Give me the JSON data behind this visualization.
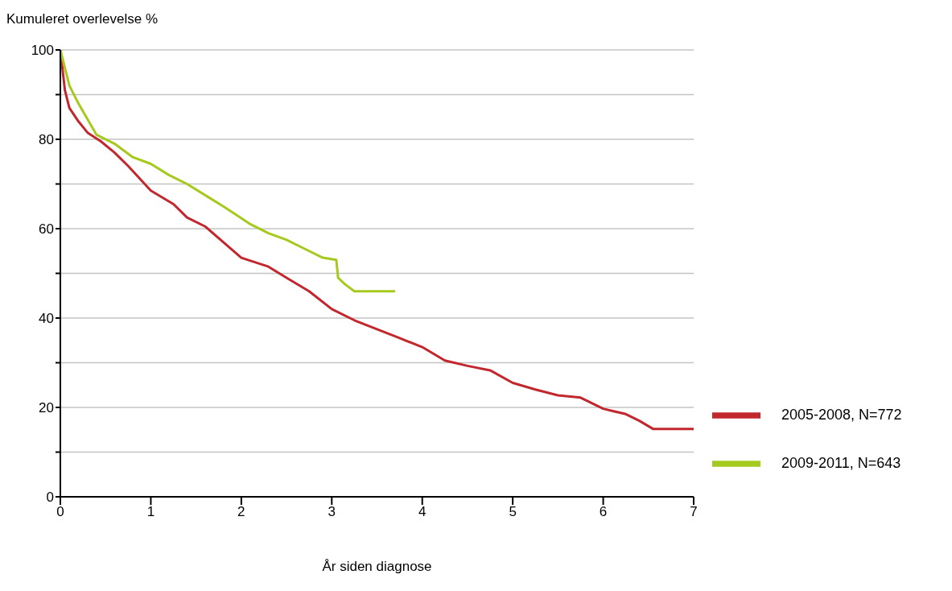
{
  "chart_data": {
    "type": "line",
    "xlabel": "År siden diagnose",
    "ylabel": "Kumuleret overlevelse %",
    "series": [
      {
        "name": "2005-2008, N=772",
        "color": "#c1272d",
        "x": [
          0,
          0.05,
          0.1,
          0.2,
          0.3,
          0.45,
          0.6,
          0.75,
          1.0,
          1.25,
          1.4,
          1.6,
          1.8,
          2.0,
          2.3,
          2.5,
          2.75,
          3.0,
          3.25,
          3.5,
          3.75,
          4.0,
          4.25,
          4.5,
          4.75,
          5.0,
          5.25,
          5.5,
          5.75,
          6.0,
          6.25,
          6.4,
          6.55,
          7.0
        ],
        "values": [
          100,
          91,
          87,
          84,
          81.5,
          79.5,
          77,
          74,
          68.5,
          65.5,
          62.5,
          60.5,
          57,
          53.5,
          51.5,
          49,
          46,
          42,
          39.5,
          37.5,
          35.5,
          33.5,
          30.5,
          29.3,
          28.3,
          25.5,
          24,
          22.7,
          22.2,
          19.7,
          18.5,
          17,
          15.2,
          15.2
        ]
      },
      {
        "name": "2009-2011, N=643",
        "color": "#a6c91e",
        "x": [
          0,
          0.1,
          0.2,
          0.3,
          0.4,
          0.6,
          0.8,
          1.0,
          1.2,
          1.4,
          1.6,
          1.8,
          1.95,
          2.1,
          2.3,
          2.5,
          2.7,
          2.9,
          3.05,
          3.07,
          3.15,
          3.25,
          3.7
        ],
        "values": [
          100,
          92,
          88,
          84.5,
          81,
          79,
          76,
          74.5,
          72,
          70,
          67.5,
          65,
          63,
          61,
          59,
          57.5,
          55.5,
          53.5,
          53,
          49,
          47.5,
          46,
          46
        ]
      }
    ],
    "xlim": [
      0,
      7
    ],
    "xticks": [
      0,
      1,
      2,
      3,
      4,
      5,
      6,
      7
    ],
    "ylim": [
      0,
      100
    ],
    "yticks": [
      0,
      {
        "value": 10,
        "label": null
      },
      20,
      {
        "value": 30,
        "label": null
      },
      40,
      {
        "value": 50,
        "label": null
      },
      60,
      {
        "value": 70,
        "label": null
      },
      80,
      {
        "value": 90,
        "label": null
      },
      100
    ],
    "grid": "y",
    "legend": "right",
    "marker": "none",
    "line_style": "solid"
  }
}
